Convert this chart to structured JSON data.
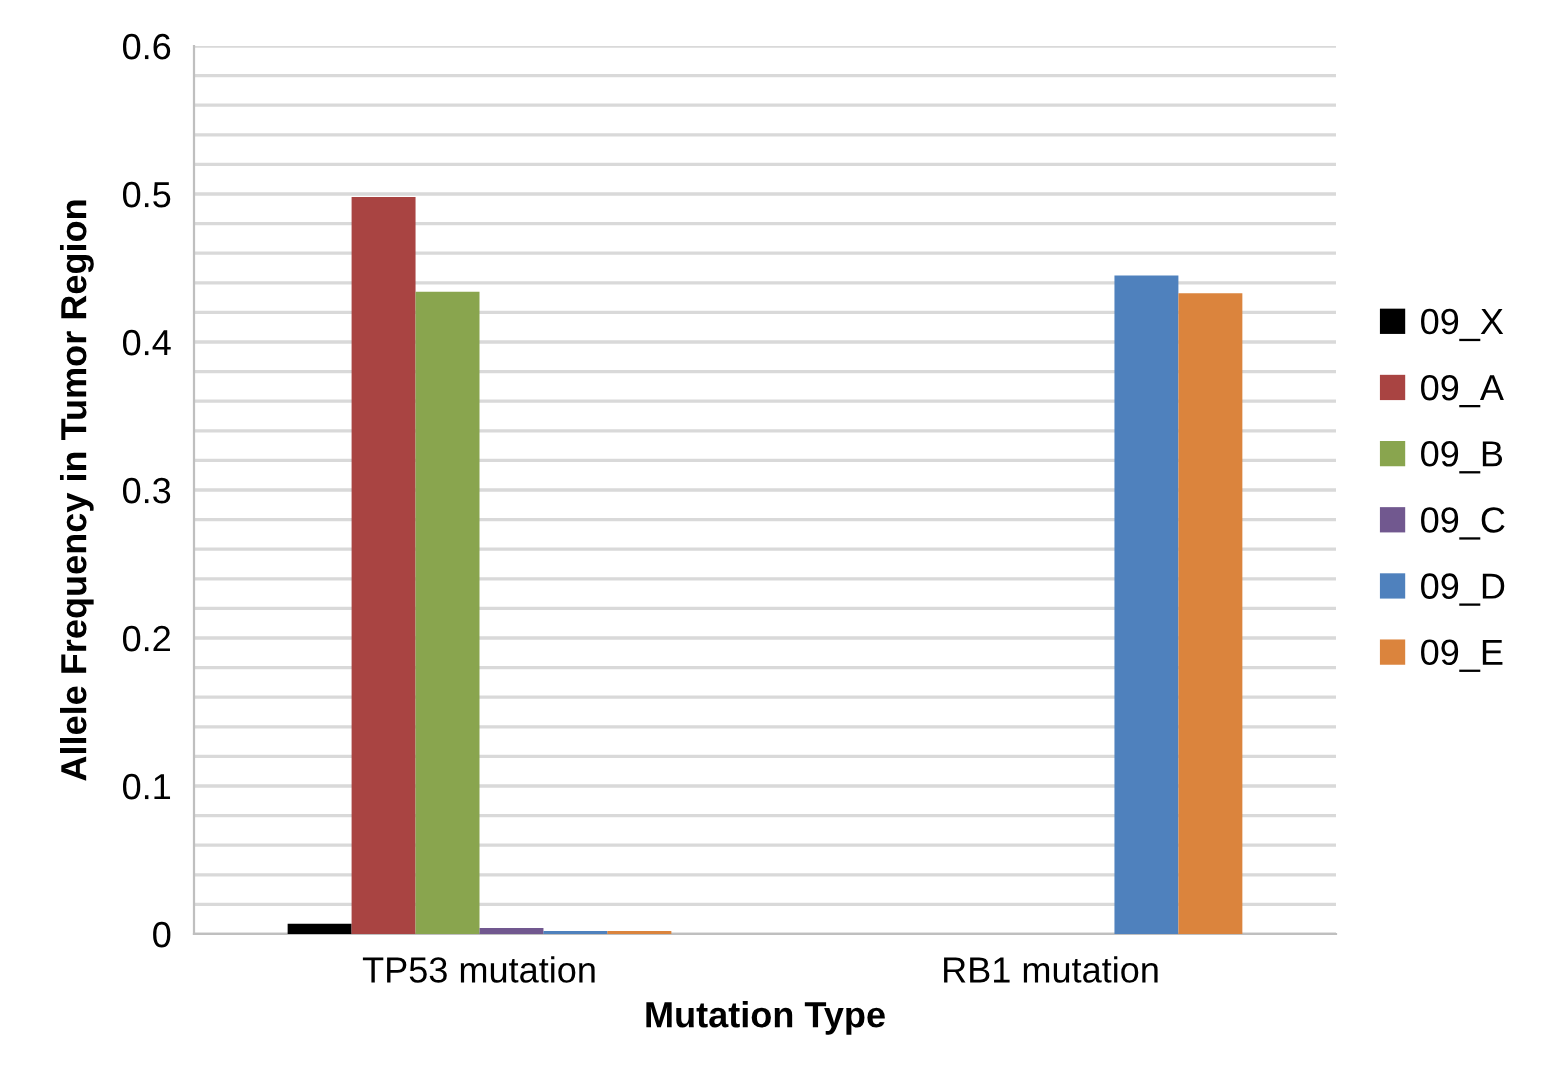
{
  "chart_data": {
    "type": "bar",
    "xlabel": "Mutation Type",
    "ylabel": "Allele Frequency in Tumor Region",
    "categories": [
      "TP53 mutation",
      "RB1 mutation"
    ],
    "series": [
      {
        "name": "09_X",
        "color": "#000000",
        "values": [
          0.007,
          0
        ]
      },
      {
        "name": "09_A",
        "color": "#a94442",
        "values": [
          0.498,
          0
        ]
      },
      {
        "name": "09_B",
        "color": "#89a54e",
        "values": [
          0.434,
          0
        ]
      },
      {
        "name": "09_C",
        "color": "#71588f",
        "values": [
          0.004,
          0
        ]
      },
      {
        "name": "09_D",
        "color": "#4f81bd",
        "values": [
          0.002,
          0.445
        ]
      },
      {
        "name": "09_E",
        "color": "#db843d",
        "values": [
          0.002,
          0.433
        ]
      }
    ],
    "ylim": [
      0,
      0.6
    ],
    "yticks": [
      0,
      {
        "value": 0.02,
        "label": null
      },
      {
        "value": 0.04,
        "label": null
      },
      {
        "value": 0.06,
        "label": null
      },
      {
        "value": 0.08,
        "label": null
      },
      0.1,
      {
        "value": 0.12,
        "label": null
      },
      {
        "value": 0.14,
        "label": null
      },
      {
        "value": 0.16,
        "label": null
      },
      {
        "value": 0.18,
        "label": null
      },
      0.2,
      {
        "value": 0.22,
        "label": null
      },
      {
        "value": 0.24,
        "label": null
      },
      {
        "value": 0.26,
        "label": null
      },
      {
        "value": 0.28,
        "label": null
      },
      0.3,
      {
        "value": 0.32,
        "label": null
      },
      {
        "value": 0.34,
        "label": null
      },
      {
        "value": 0.36,
        "label": null
      },
      {
        "value": 0.38,
        "label": null
      },
      0.4,
      {
        "value": 0.42,
        "label": null
      },
      {
        "value": 0.44,
        "label": null
      },
      {
        "value": 0.46,
        "label": null
      },
      {
        "value": 0.48,
        "label": null
      },
      0.5,
      {
        "value": 0.52,
        "label": null
      },
      {
        "value": 0.54,
        "label": null
      },
      {
        "value": 0.56,
        "label": null
      },
      {
        "value": 0.58,
        "label": null
      },
      0.6
    ],
    "grid": "y",
    "legend": "right"
  }
}
